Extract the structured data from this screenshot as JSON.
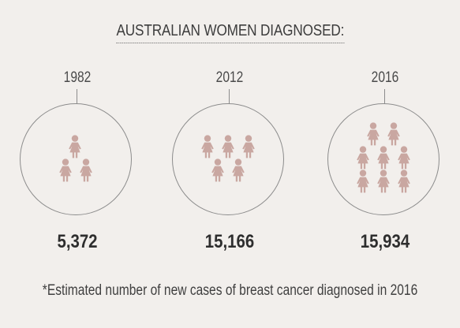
{
  "title": "AUSTRALIAN WOMEN DIAGNOSED:",
  "footnote": "*Estimated number of new cases of breast cancer diagnosed in 2016",
  "colors": {
    "background": "#f2efec",
    "figure": "#c9a7a1",
    "circle": "#8c8c8c",
    "text": "#3a3a3a"
  },
  "icons": {
    "figure": "woman-icon"
  },
  "chart_data": {
    "type": "pictogram",
    "categories": [
      "1982",
      "2012",
      "2016"
    ],
    "values": [
      5372,
      15166,
      15934
    ],
    "value_labels": [
      "5,372",
      "15,166",
      "15,934"
    ],
    "icon_counts": [
      3,
      5,
      8
    ]
  }
}
